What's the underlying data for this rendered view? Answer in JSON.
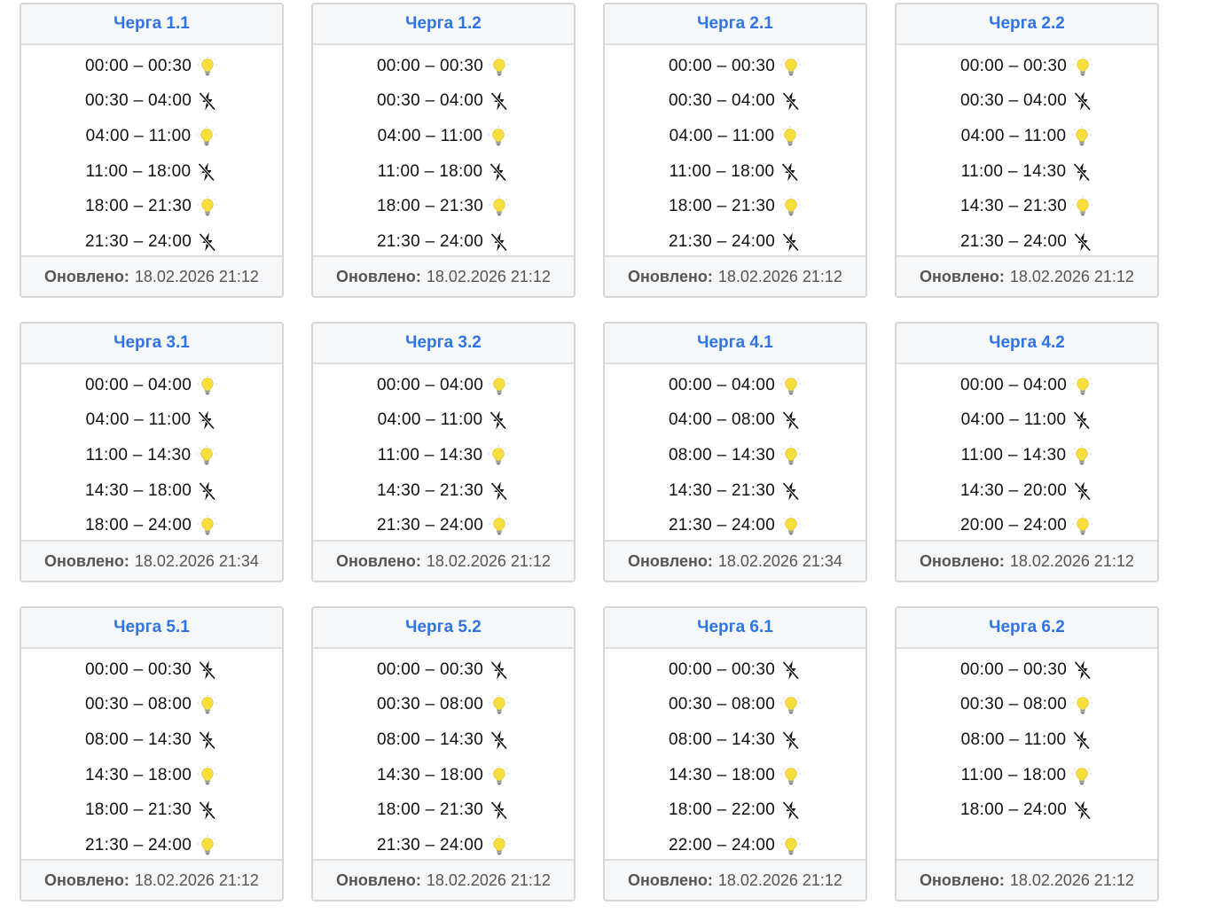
{
  "on_icon": "lightbulb-icon",
  "off_icon": "no-power-icon",
  "colors": {
    "title": "#2f74e4",
    "bulb": "#f7de3a",
    "header_bg": "#f6f7f9",
    "border": "#d6d6d6"
  },
  "cards": [
    {
      "title": "Черга 1.1",
      "updated_label": "Оновлено:",
      "updated": "18.02.2026 21:12",
      "rows": [
        {
          "time": "00:00 – 00:30",
          "on": true
        },
        {
          "time": "00:30 – 04:00",
          "on": false
        },
        {
          "time": "04:00 – 11:00",
          "on": true
        },
        {
          "time": "11:00 – 18:00",
          "on": false
        },
        {
          "time": "18:00 – 21:30",
          "on": true
        },
        {
          "time": "21:30 – 24:00",
          "on": false
        }
      ]
    },
    {
      "title": "Черга 1.2",
      "updated_label": "Оновлено:",
      "updated": "18.02.2026 21:12",
      "rows": [
        {
          "time": "00:00 – 00:30",
          "on": true
        },
        {
          "time": "00:30 – 04:00",
          "on": false
        },
        {
          "time": "04:00 – 11:00",
          "on": true
        },
        {
          "time": "11:00 – 18:00",
          "on": false
        },
        {
          "time": "18:00 – 21:30",
          "on": true
        },
        {
          "time": "21:30 – 24:00",
          "on": false
        }
      ]
    },
    {
      "title": "Черга 2.1",
      "updated_label": "Оновлено:",
      "updated": "18.02.2026 21:12",
      "rows": [
        {
          "time": "00:00 – 00:30",
          "on": true
        },
        {
          "time": "00:30 – 04:00",
          "on": false
        },
        {
          "time": "04:00 – 11:00",
          "on": true
        },
        {
          "time": "11:00 – 18:00",
          "on": false
        },
        {
          "time": "18:00 – 21:30",
          "on": true
        },
        {
          "time": "21:30 – 24:00",
          "on": false
        }
      ]
    },
    {
      "title": "Черга 2.2",
      "updated_label": "Оновлено:",
      "updated": "18.02.2026 21:12",
      "rows": [
        {
          "time": "00:00 – 00:30",
          "on": true
        },
        {
          "time": "00:30 – 04:00",
          "on": false
        },
        {
          "time": "04:00 – 11:00",
          "on": true
        },
        {
          "time": "11:00 – 14:30",
          "on": false
        },
        {
          "time": "14:30 – 21:30",
          "on": true
        },
        {
          "time": "21:30 – 24:00",
          "on": false
        }
      ]
    },
    {
      "title": "Черга 3.1",
      "updated_label": "Оновлено:",
      "updated": "18.02.2026 21:34",
      "rows": [
        {
          "time": "00:00 – 04:00",
          "on": true
        },
        {
          "time": "04:00 – 11:00",
          "on": false
        },
        {
          "time": "11:00 – 14:30",
          "on": true
        },
        {
          "time": "14:30 – 18:00",
          "on": false
        },
        {
          "time": "18:00 – 24:00",
          "on": true
        }
      ]
    },
    {
      "title": "Черга 3.2",
      "updated_label": "Оновлено:",
      "updated": "18.02.2026 21:12",
      "rows": [
        {
          "time": "00:00 – 04:00",
          "on": true
        },
        {
          "time": "04:00 – 11:00",
          "on": false
        },
        {
          "time": "11:00 – 14:30",
          "on": true
        },
        {
          "time": "14:30 – 21:30",
          "on": false
        },
        {
          "time": "21:30 – 24:00",
          "on": true
        }
      ]
    },
    {
      "title": "Черга 4.1",
      "updated_label": "Оновлено:",
      "updated": "18.02.2026 21:34",
      "rows": [
        {
          "time": "00:00 – 04:00",
          "on": true
        },
        {
          "time": "04:00 – 08:00",
          "on": false
        },
        {
          "time": "08:00 – 14:30",
          "on": true
        },
        {
          "time": "14:30 – 21:30",
          "on": false
        },
        {
          "time": "21:30 – 24:00",
          "on": true
        }
      ]
    },
    {
      "title": "Черга 4.2",
      "updated_label": "Оновлено:",
      "updated": "18.02.2026 21:12",
      "rows": [
        {
          "time": "00:00 – 04:00",
          "on": true
        },
        {
          "time": "04:00 – 11:00",
          "on": false
        },
        {
          "time": "11:00 – 14:30",
          "on": true
        },
        {
          "time": "14:30 – 20:00",
          "on": false
        },
        {
          "time": "20:00 – 24:00",
          "on": true
        }
      ]
    },
    {
      "title": "Черга 5.1",
      "updated_label": "Оновлено:",
      "updated": "18.02.2026 21:12",
      "rows": [
        {
          "time": "00:00 – 00:30",
          "on": false
        },
        {
          "time": "00:30 – 08:00",
          "on": true
        },
        {
          "time": "08:00 – 14:30",
          "on": false
        },
        {
          "time": "14:30 – 18:00",
          "on": true
        },
        {
          "time": "18:00 – 21:30",
          "on": false
        },
        {
          "time": "21:30 – 24:00",
          "on": true
        }
      ]
    },
    {
      "title": "Черга 5.2",
      "updated_label": "Оновлено:",
      "updated": "18.02.2026 21:12",
      "rows": [
        {
          "time": "00:00 – 00:30",
          "on": false
        },
        {
          "time": "00:30 – 08:00",
          "on": true
        },
        {
          "time": "08:00 – 14:30",
          "on": false
        },
        {
          "time": "14:30 – 18:00",
          "on": true
        },
        {
          "time": "18:00 – 21:30",
          "on": false
        },
        {
          "time": "21:30 – 24:00",
          "on": true
        }
      ]
    },
    {
      "title": "Черга 6.1",
      "updated_label": "Оновлено:",
      "updated": "18.02.2026 21:12",
      "rows": [
        {
          "time": "00:00 – 00:30",
          "on": false
        },
        {
          "time": "00:30 – 08:00",
          "on": true
        },
        {
          "time": "08:00 – 14:30",
          "on": false
        },
        {
          "time": "14:30 – 18:00",
          "on": true
        },
        {
          "time": "18:00 – 22:00",
          "on": false
        },
        {
          "time": "22:00 – 24:00",
          "on": true
        }
      ]
    },
    {
      "title": "Черга 6.2",
      "updated_label": "Оновлено:",
      "updated": "18.02.2026 21:12",
      "rows": [
        {
          "time": "00:00 – 00:30",
          "on": false
        },
        {
          "time": "00:30 – 08:00",
          "on": true
        },
        {
          "time": "08:00 – 11:00",
          "on": false
        },
        {
          "time": "11:00 – 18:00",
          "on": true
        },
        {
          "time": "18:00 – 24:00",
          "on": false
        }
      ]
    }
  ]
}
